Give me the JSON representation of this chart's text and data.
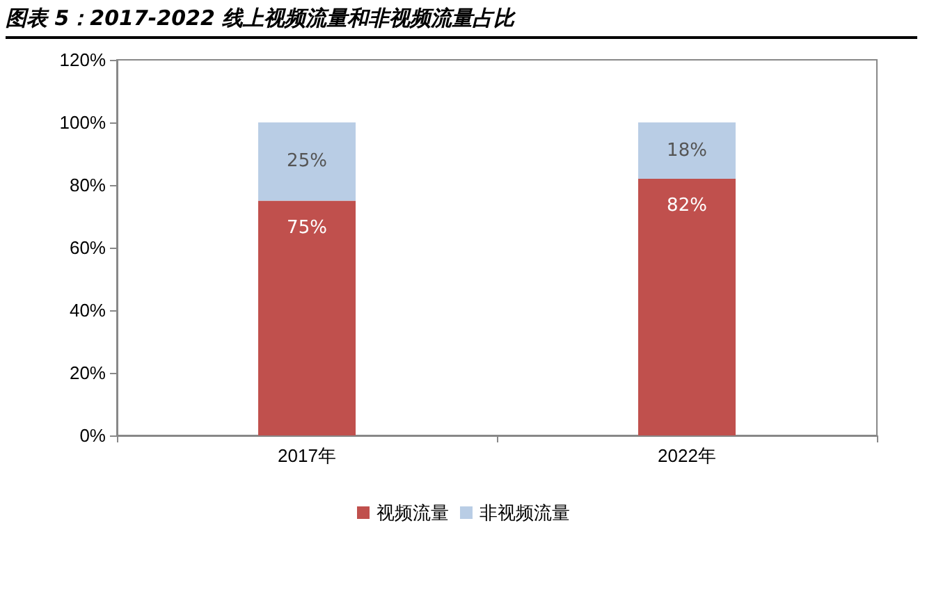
{
  "chart_data": {
    "type": "bar",
    "title": "图表 5：2017-2022 线上视频流量和非视频流量占比",
    "categories": [
      "2017年",
      "2022年"
    ],
    "stacked": true,
    "series": [
      {
        "name": "视频流量",
        "color": "#c0504d",
        "values": [
          75,
          82
        ],
        "value_labels": [
          "75%",
          "82%"
        ]
      },
      {
        "name": "非视频流量",
        "color": "#b9cde5",
        "values": [
          25,
          18
        ],
        "value_labels": [
          "25%",
          "18%"
        ]
      }
    ],
    "ylim": [
      0,
      120
    ],
    "yticks": [
      {
        "value": 0,
        "label": "0%"
      },
      {
        "value": 20,
        "label": "20%"
      },
      {
        "value": 40,
        "label": "40%"
      },
      {
        "value": 60,
        "label": "60%"
      },
      {
        "value": 80,
        "label": "80%"
      },
      {
        "value": 100,
        "label": "100%"
      },
      {
        "value": 120,
        "label": "120%"
      }
    ],
    "grid": false,
    "legend": "bottom"
  }
}
